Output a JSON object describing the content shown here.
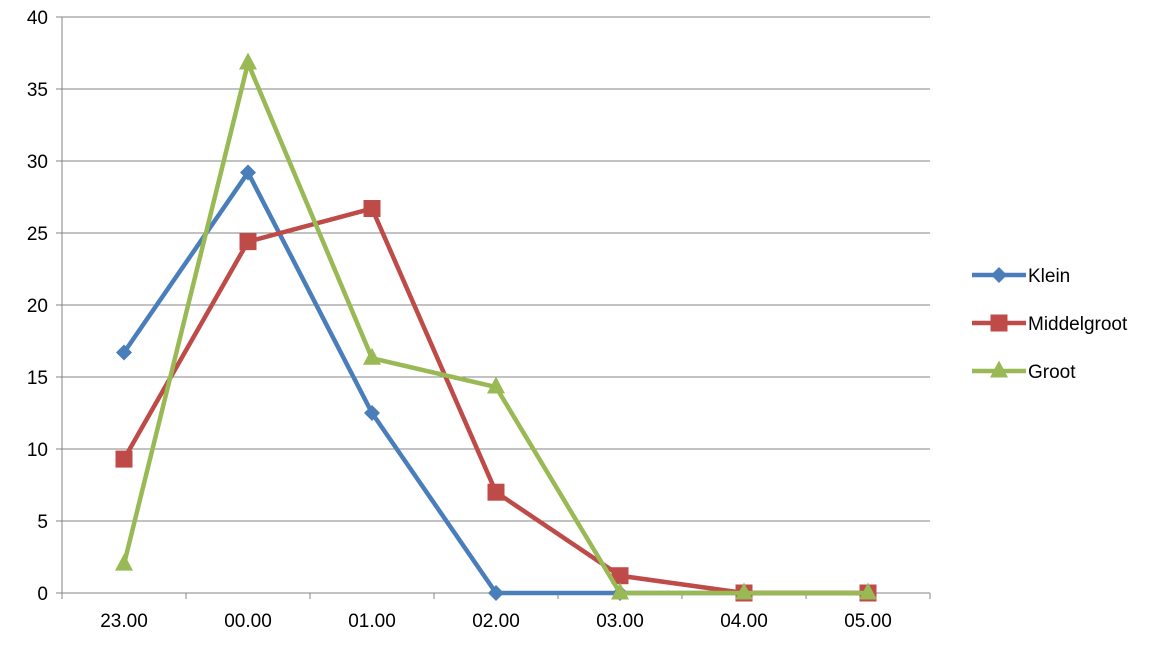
{
  "chart_data": {
    "type": "line",
    "title": "",
    "xlabel": "",
    "ylabel": "",
    "categories": [
      "23.00",
      "00.00",
      "01.00",
      "02.00",
      "03.00",
      "04.00",
      "05.00"
    ],
    "ylim": [
      0,
      40
    ],
    "yticks": [
      0,
      5,
      10,
      15,
      20,
      25,
      30,
      35,
      40
    ],
    "grid": true,
    "legend_position": "right",
    "series": [
      {
        "name": "Klein",
        "marker": "diamond",
        "color": "#4A7EBB",
        "values": [
          16.7,
          29.2,
          12.5,
          0,
          0,
          0,
          0
        ]
      },
      {
        "name": "Middelgroot",
        "marker": "square",
        "color": "#BE4B48",
        "values": [
          9.3,
          24.4,
          26.7,
          7.0,
          1.2,
          0,
          0
        ]
      },
      {
        "name": "Groot",
        "marker": "triangle",
        "color": "#98B954",
        "values": [
          2.0,
          36.8,
          16.3,
          14.3,
          0,
          0,
          0
        ]
      }
    ]
  }
}
